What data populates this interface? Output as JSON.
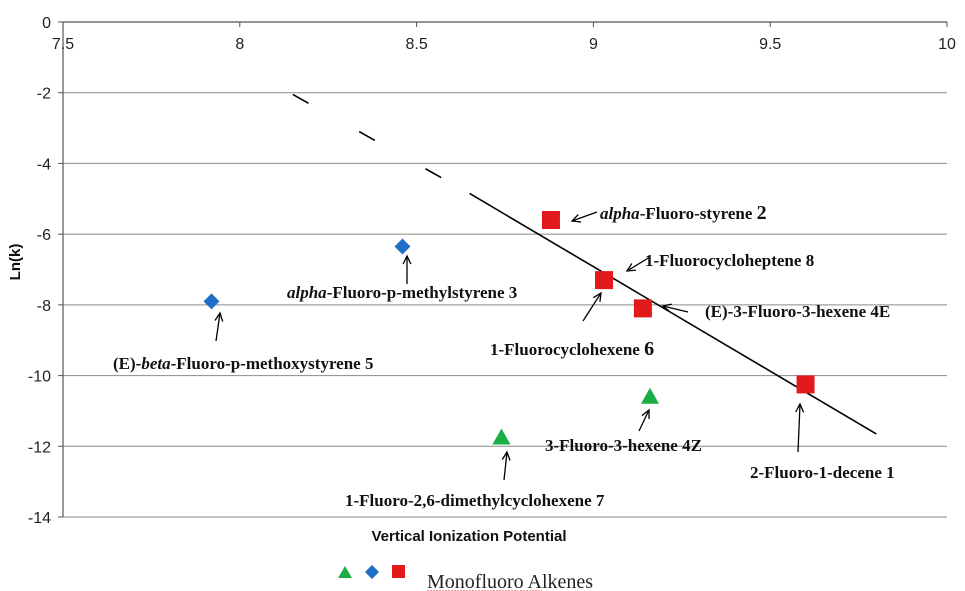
{
  "chart_data": {
    "type": "scatter",
    "xlabel": "Vertical Ionization Potential",
    "ylabel": "Ln(k)",
    "xlim": [
      7.5,
      10
    ],
    "ylim": [
      -14,
      0
    ],
    "x_ticks": [
      "7.5",
      "8",
      "8.5",
      "9",
      "9.5",
      "10"
    ],
    "y_ticks": [
      "0",
      "-2",
      "-4",
      "-6",
      "-8",
      "-10",
      "-12",
      "-14"
    ],
    "grid": "horizontal",
    "x_axis_position": "top",
    "colors": {
      "green": "#1aae44",
      "blue": "#1f6fc8",
      "red": "#e31a1c"
    },
    "series": [
      {
        "marker": "triangle",
        "color": "#1aae44",
        "points": [
          {
            "x": 8.74,
            "y": -11.75
          },
          {
            "x": 9.16,
            "y": -10.6
          }
        ]
      },
      {
        "marker": "diamond",
        "color": "#1f6fc8",
        "points": [
          {
            "x": 7.92,
            "y": -7.9
          },
          {
            "x": 8.46,
            "y": -6.35
          }
        ]
      },
      {
        "marker": "square",
        "color": "#e31a1c",
        "points": [
          {
            "x": 8.88,
            "y": -5.6
          },
          {
            "x": 9.03,
            "y": -7.3
          },
          {
            "x": 9.14,
            "y": -8.1
          },
          {
            "x": 9.6,
            "y": -10.25
          }
        ]
      }
    ],
    "fit_line": {
      "solid": [
        [
          8.65,
          -4.85
        ],
        [
          9.8,
          -11.65
        ]
      ],
      "dashed": [
        [
          8.15,
          -2.05
        ],
        [
          8.65,
          -4.85
        ]
      ]
    },
    "annotations": [
      {
        "italic": "alpha",
        "text": "-Fluoro-styrene",
        "num": "2"
      },
      {
        "italic": "",
        "text": "1-Fluorocycloheptene",
        "num": "8"
      },
      {
        "italic": "alpha",
        "text": "-Fluoro-p-methylstyrene",
        "num": "3"
      },
      {
        "italic": "",
        "text": "(E)-3-Fluoro-3-hexene",
        "num": "4E"
      },
      {
        "italic": "",
        "text": "1-Fluorocyclohexene",
        "num": "6"
      },
      {
        "italic": "beta",
        "text": "-Fluoro-p-methoxystyrene",
        "num": "5",
        "prefix": "(E)-"
      },
      {
        "italic": "",
        "text": "3-Fluoro-3-hexene",
        "num": "4Z"
      },
      {
        "italic": "",
        "text": "2-Fluoro-1-decene",
        "num": "1"
      },
      {
        "italic": "",
        "text": "1-Fluoro-2,6-dimethylcyclohexene",
        "num": "7"
      }
    ],
    "legend": {
      "label": "Monofluoro Alkenes"
    }
  }
}
